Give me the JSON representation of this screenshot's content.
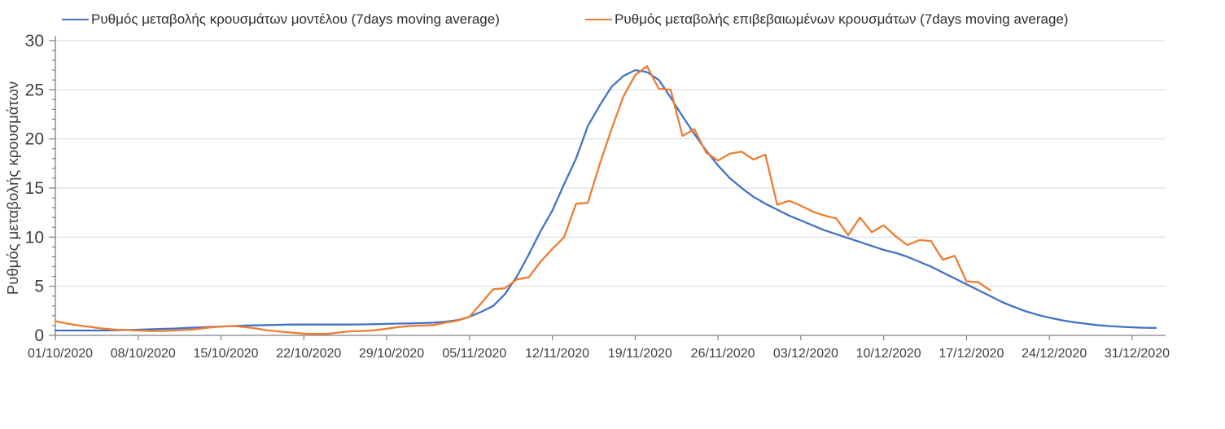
{
  "chart_data": {
    "type": "line",
    "title": "",
    "xlabel": "",
    "ylabel": "Ρυθμός μεταβολής κρουσμάτων",
    "ylim": [
      0,
      30
    ],
    "y_major_step": 5,
    "y_minor_step": 1,
    "grid": "horizontal-only",
    "legend_position": "top",
    "x_tick_labels": [
      "01/10/2020",
      "08/10/2020",
      "15/10/2020",
      "22/10/2020",
      "29/10/2020",
      "05/11/2020",
      "12/11/2020",
      "19/11/2020",
      "26/11/2020",
      "03/12/2020",
      "10/12/2020",
      "17/12/2020",
      "24/12/2020",
      "31/12/2020"
    ],
    "x_tick_interval_days": 7,
    "colors": {
      "series_model": "#4472C4",
      "series_confirmed": "#ED7D31",
      "axis": "#808080",
      "grid": "#D9D9D9",
      "tick_text": "#3f3f3f"
    },
    "series": [
      {
        "name": "Ρυθμός μεταβολής κρουσμάτων μοντέλου (7days moving average)",
        "color": "#4472C4",
        "start_day": 0,
        "values": [
          0.5,
          0.5,
          0.5,
          0.5,
          0.5,
          0.52,
          0.55,
          0.58,
          0.62,
          0.66,
          0.7,
          0.75,
          0.8,
          0.85,
          0.9,
          0.95,
          1.0,
          1.02,
          1.05,
          1.08,
          1.1,
          1.1,
          1.1,
          1.1,
          1.1,
          1.1,
          1.12,
          1.14,
          1.17,
          1.2,
          1.22,
          1.25,
          1.3,
          1.4,
          1.55,
          1.9,
          2.4,
          3.0,
          4.2,
          6.0,
          8.2,
          10.6,
          12.7,
          15.4,
          18.0,
          21.3,
          23.4,
          25.3,
          26.4,
          27.0,
          26.8,
          26.0,
          24.2,
          22.3,
          20.5,
          18.8,
          17.3,
          16.0,
          15.0,
          14.1,
          13.4,
          12.8,
          12.2,
          11.7,
          11.2,
          10.7,
          10.3,
          9.9,
          9.5,
          9.1,
          8.7,
          8.4,
          8.0,
          7.5,
          7.0,
          6.4,
          5.8,
          5.2,
          4.6,
          4.0,
          3.4,
          2.9,
          2.45,
          2.1,
          1.8,
          1.55,
          1.35,
          1.2,
          1.05,
          0.95,
          0.88,
          0.82,
          0.78,
          0.76
        ]
      },
      {
        "name": "Ρυθμός μεταβολής επιβεβαιωμένων κρουσμάτων (7days moving average)",
        "color": "#ED7D31",
        "start_day": 0,
        "values": [
          1.45,
          1.2,
          1.0,
          0.85,
          0.7,
          0.6,
          0.55,
          0.5,
          0.45,
          0.45,
          0.5,
          0.55,
          0.65,
          0.8,
          0.9,
          0.95,
          0.85,
          0.7,
          0.5,
          0.38,
          0.28,
          0.18,
          0.15,
          0.15,
          0.3,
          0.42,
          0.45,
          0.52,
          0.68,
          0.85,
          0.95,
          1.0,
          1.05,
          1.3,
          1.5,
          1.9,
          3.3,
          4.7,
          4.8,
          5.7,
          5.9,
          7.5,
          8.8,
          10.0,
          13.4,
          13.5,
          17.4,
          21.0,
          24.3,
          26.5,
          27.4,
          25.1,
          25.0,
          20.3,
          21.0,
          18.6,
          17.8,
          18.5,
          18.7,
          17.9,
          18.4,
          13.3,
          13.7,
          13.2,
          12.6,
          12.2,
          11.9,
          10.2,
          12.0,
          10.5,
          11.2,
          10.1,
          9.2,
          9.7,
          9.6,
          7.7,
          8.1,
          5.5,
          5.4,
          4.6
        ]
      }
    ]
  }
}
